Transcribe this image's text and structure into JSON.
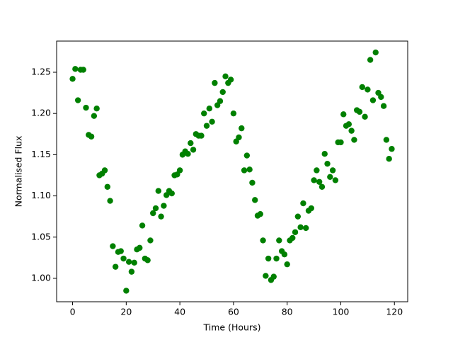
{
  "chart_data": {
    "type": "scatter",
    "x_label": "Time (Hours)",
    "y_label": "Normalised Flux",
    "color": "#008000",
    "x": [
      0,
      1,
      2,
      3,
      4,
      5,
      6,
      7,
      8,
      9,
      10,
      11,
      12,
      13,
      14,
      15,
      16,
      17,
      18,
      19,
      20,
      21,
      22,
      23,
      24,
      25,
      26,
      27,
      28,
      29,
      30,
      31,
      32,
      33,
      34,
      35,
      36,
      37,
      38,
      39,
      40,
      41,
      42,
      43,
      44,
      45,
      46,
      47,
      48,
      49,
      50,
      51,
      52,
      53,
      54,
      55,
      56,
      57,
      58,
      59,
      60,
      61,
      62,
      63,
      64,
      65,
      66,
      67,
      68,
      69,
      70,
      71,
      72,
      73,
      74,
      75,
      76,
      77,
      78,
      79,
      80,
      81,
      82,
      83,
      84,
      85,
      86,
      87,
      88,
      89,
      90,
      91,
      92,
      93,
      94,
      95,
      96,
      97,
      98,
      99,
      100,
      101,
      102,
      103,
      104,
      105,
      106,
      107,
      108,
      109,
      110,
      111,
      112,
      113,
      114,
      115,
      116,
      117,
      118,
      119
    ],
    "values": [
      1.242,
      1.254,
      1.216,
      1.253,
      1.253,
      1.207,
      1.174,
      1.172,
      1.197,
      1.206,
      1.125,
      1.127,
      1.131,
      1.111,
      1.094,
      1.039,
      1.014,
      1.032,
      1.033,
      1.024,
      0.985,
      1.02,
      1.008,
      1.019,
      1.035,
      1.037,
      1.064,
      1.024,
      1.022,
      1.046,
      1.079,
      1.085,
      1.106,
      1.075,
      1.088,
      1.101,
      1.106,
      1.103,
      1.125,
      1.126,
      1.131,
      1.15,
      1.154,
      1.151,
      1.164,
      1.156,
      1.175,
      1.173,
      1.173,
      1.2,
      1.185,
      1.206,
      1.19,
      1.237,
      1.21,
      1.215,
      1.226,
      1.245,
      1.237,
      1.241,
      1.2,
      1.166,
      1.171,
      1.182,
      1.131,
      1.149,
      1.132,
      1.116,
      1.095,
      1.076,
      1.078,
      1.046,
      1.003,
      1.024,
      0.998,
      1.002,
      1.024,
      1.046,
      1.033,
      1.029,
      1.017,
      1.046,
      1.049,
      1.056,
      1.075,
      1.062,
      1.091,
      1.061,
      1.082,
      1.085,
      1.119,
      1.131,
      1.117,
      1.111,
      1.151,
      1.139,
      1.123,
      1.131,
      1.119,
      1.165,
      1.165,
      1.199,
      1.185,
      1.187,
      1.179,
      1.168,
      1.204,
      1.202,
      1.232,
      1.196,
      1.229,
      1.265,
      1.216,
      1.274,
      1.225,
      1.22,
      1.209,
      1.168,
      1.145,
      1.157
    ],
    "xlim": [
      -5.95,
      124.95
    ],
    "ylim": [
      0.9716,
      1.2878
    ],
    "xticks": [
      0,
      20,
      40,
      60,
      80,
      100,
      120
    ],
    "yticks": [
      {
        "value": 1.0,
        "label": "1.00"
      },
      1.05,
      {
        "value": 1.1,
        "label": "1.10"
      },
      1.15,
      {
        "value": 1.2,
        "label": "1.20"
      },
      1.25
    ]
  }
}
